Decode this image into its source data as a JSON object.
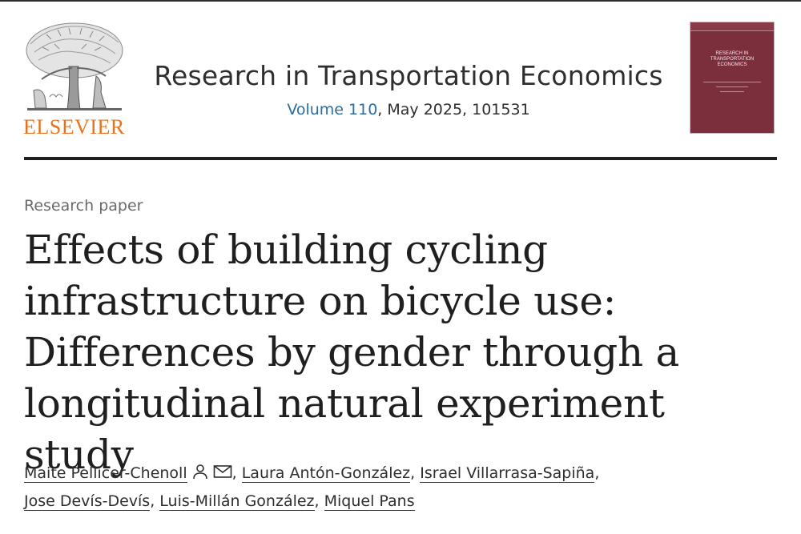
{
  "header": {
    "publisher": "ELSEVIER",
    "journal_title": "Research in Transportation Economics",
    "volume_label": "Volume 110",
    "issue_details": ", May 2025, 101531",
    "cover": {
      "title": "RESEARCH IN TRANSPORTATION ECONOMICS",
      "color": "#7b2e3c"
    }
  },
  "article": {
    "type": "Research paper",
    "title_lines": [
      "Effects of building cycling",
      "infrastructure on bicycle use:",
      "Differences by gender through a",
      "longitudinal natural experiment study"
    ],
    "authors": [
      "Maite Pellicer-Chenoll",
      "Laura Antón-González",
      "Israel Villarrasa-Sapiña",
      "Jose Devís-Devís",
      "Luis-Millán González",
      "Miquel Pans"
    ],
    "author_separator": ","
  },
  "icons": {
    "corresponding_author": "person-icon",
    "email": "envelope-icon"
  },
  "colors": {
    "publisher_orange": "#e9711c",
    "link_blue": "#2b6ca3",
    "cover_maroon": "#7b2e3c"
  }
}
